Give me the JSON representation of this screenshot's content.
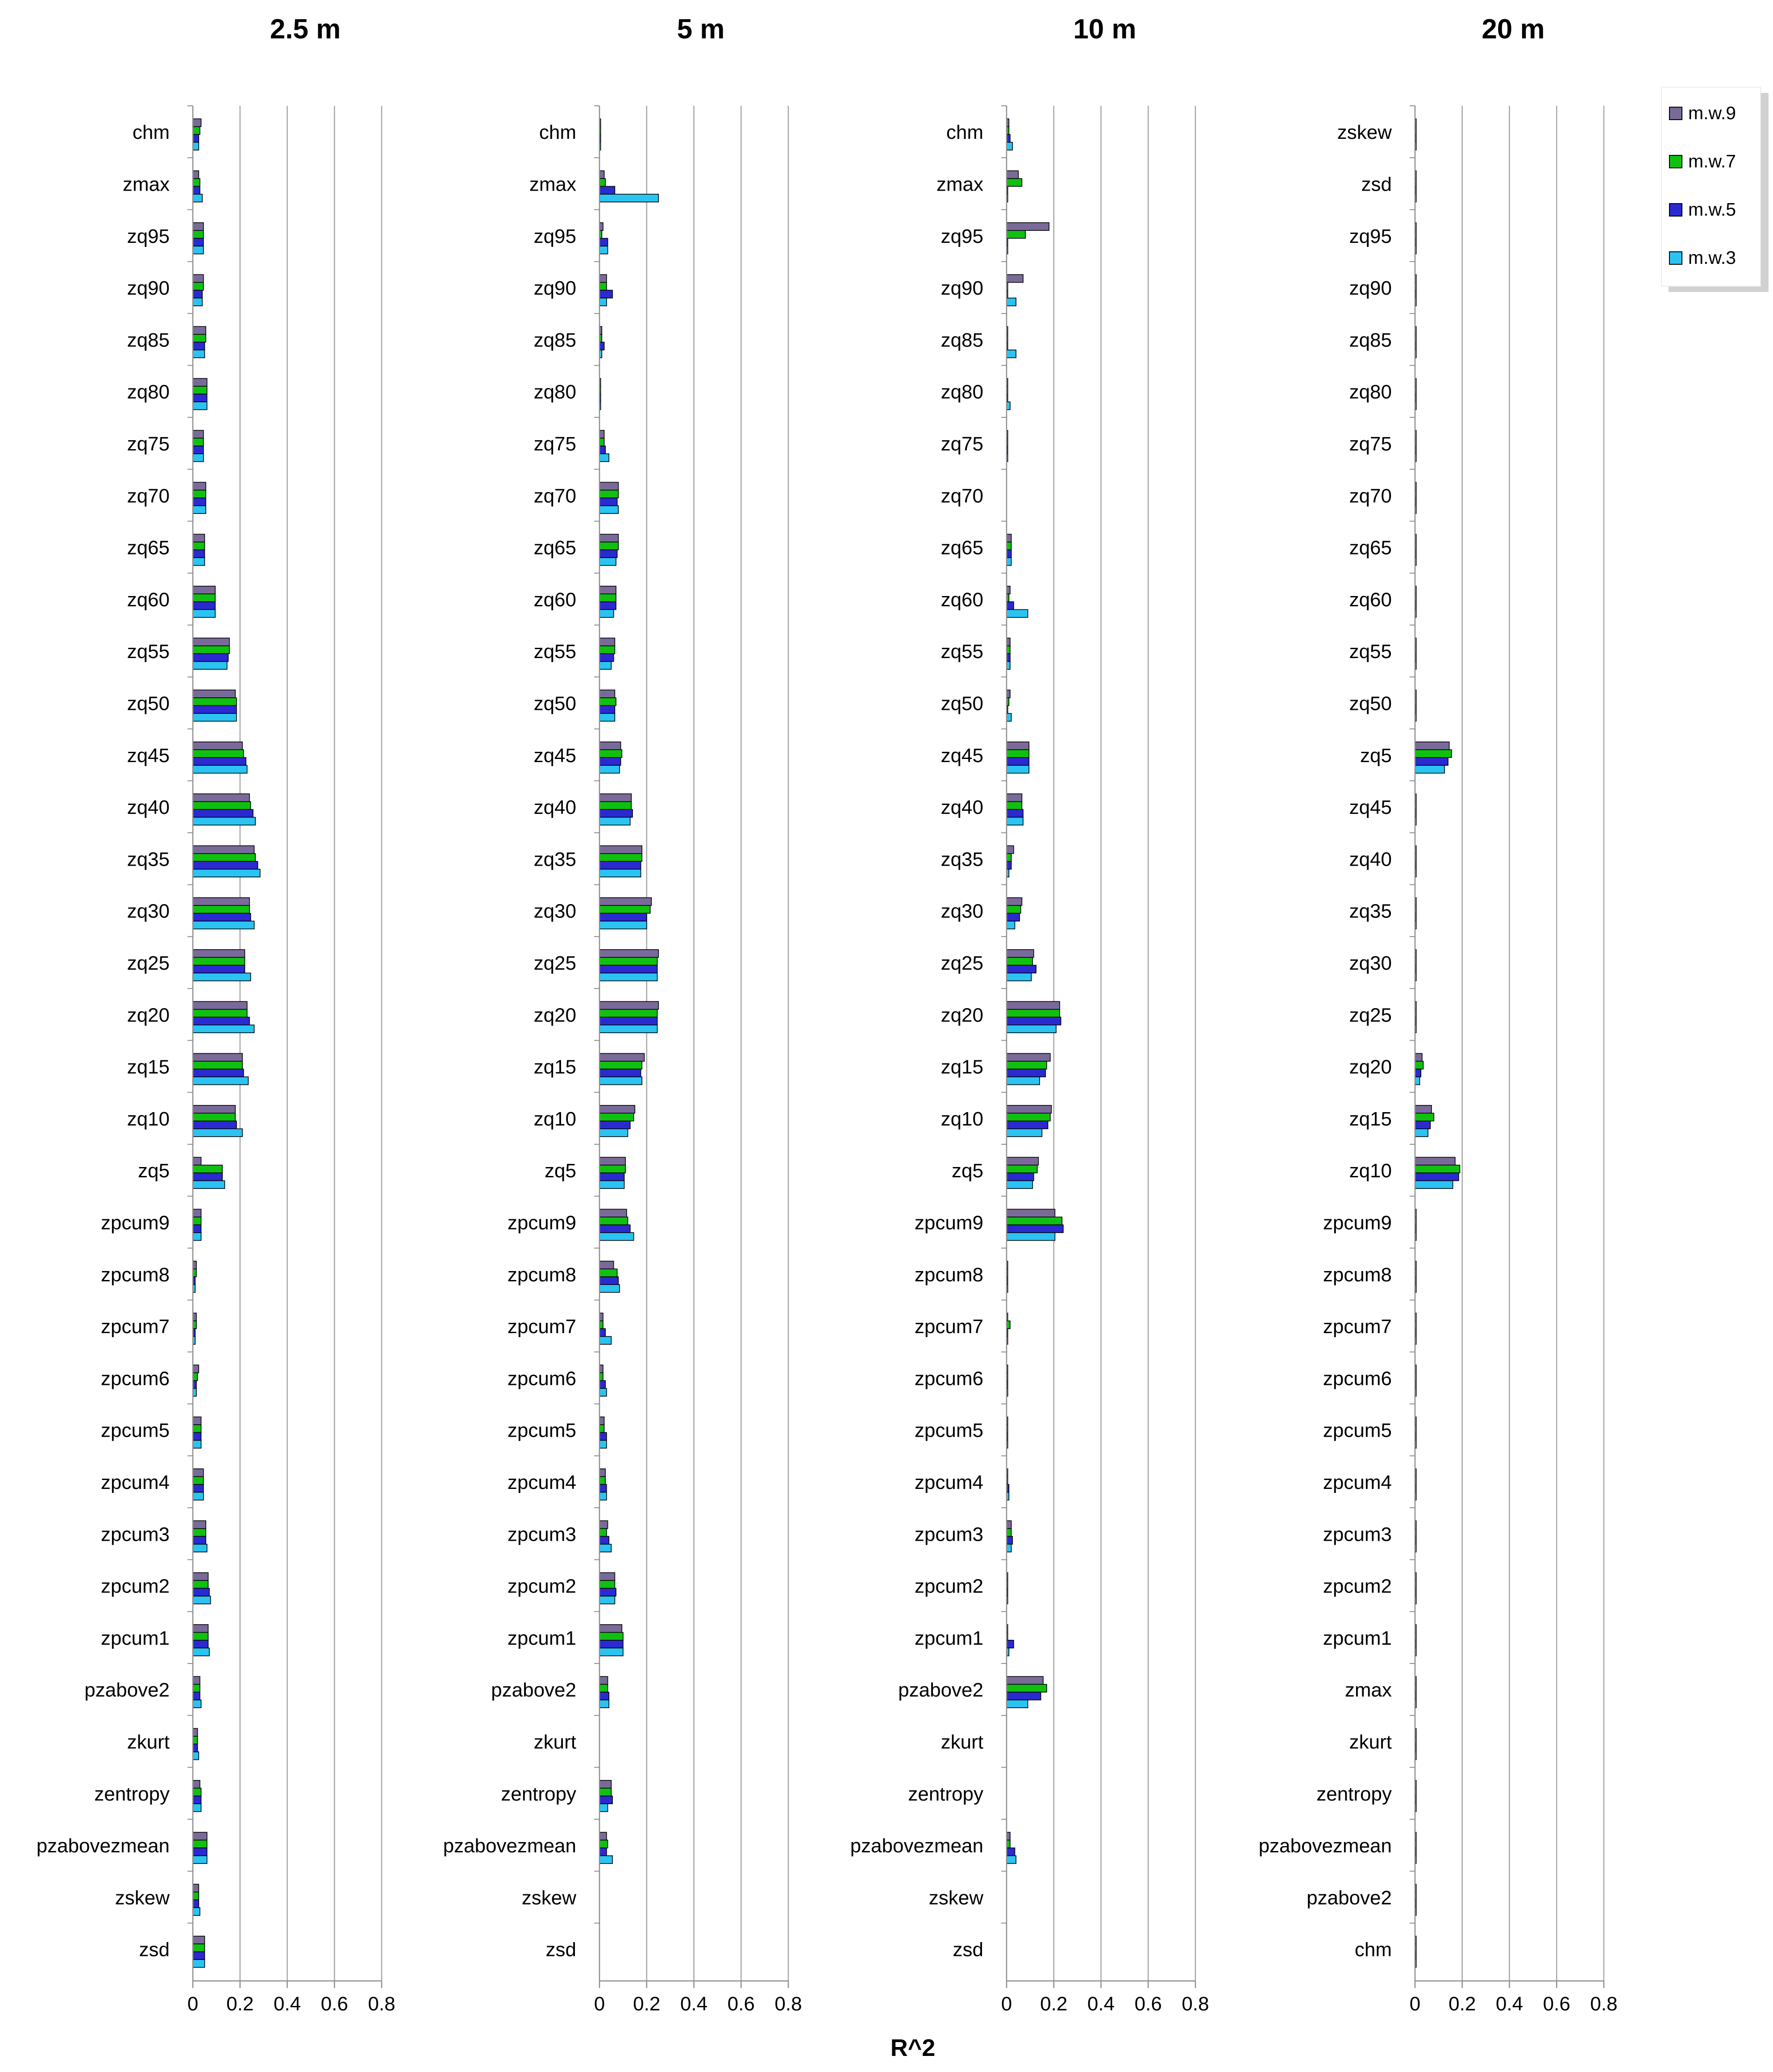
{
  "colors": {
    "m.w.9": "#7a6a99",
    "m.w.7": "#10c010",
    "m.w.5": "#2a2ad0",
    "m.w.3": "#2bc3f2"
  },
  "legend": [
    "m.w.9",
    "m.w.7",
    "m.w.5",
    "m.w.3"
  ],
  "xlabel": "R^2",
  "chart_data": [
    {
      "type": "bar",
      "orientation": "horizontal",
      "title": "2.5 m",
      "xlim": [
        0,
        0.8
      ],
      "ticks": [
        "0",
        "0.2",
        "0.4",
        "0.6",
        "0.8"
      ],
      "grid": true,
      "categories": [
        "chm",
        "zmax",
        "zq95",
        "zq90",
        "zq85",
        "zq80",
        "zq75",
        "zq70",
        "zq65",
        "zq60",
        "zq55",
        "zq50",
        "zq45",
        "zq40",
        "zq35",
        "zq30",
        "zq25",
        "zq20",
        "zq15",
        "zq10",
        "zq5",
        "zpcum9",
        "zpcum8",
        "zpcum7",
        "zpcum6",
        "zpcum5",
        "zpcum4",
        "zpcum3",
        "zpcum2",
        "zpcum1",
        "pzabove2",
        "zkurt",
        "zentropy",
        "pzabovezmean",
        "zskew",
        "zsd"
      ],
      "series": [
        {
          "name": "m.w.9",
          "values": [
            0.035,
            0.025,
            0.045,
            0.045,
            0.055,
            0.06,
            0.045,
            0.055,
            0.05,
            0.095,
            0.155,
            0.18,
            0.21,
            0.24,
            0.26,
            0.24,
            0.22,
            0.23,
            0.21,
            0.18,
            0.035,
            0.035,
            0.015,
            0.015,
            0.025,
            0.035,
            0.045,
            0.055,
            0.065,
            0.065,
            0.03,
            0.02,
            0.03,
            0.06,
            0.025,
            0.05
          ]
        },
        {
          "name": "m.w.7",
          "values": [
            0.03,
            0.03,
            0.045,
            0.045,
            0.055,
            0.06,
            0.045,
            0.055,
            0.05,
            0.095,
            0.155,
            0.185,
            0.215,
            0.245,
            0.265,
            0.24,
            0.22,
            0.23,
            0.21,
            0.18,
            0.125,
            0.035,
            0.015,
            0.015,
            0.02,
            0.035,
            0.045,
            0.055,
            0.065,
            0.065,
            0.03,
            0.02,
            0.035,
            0.06,
            0.025,
            0.05
          ]
        },
        {
          "name": "m.w.5",
          "values": [
            0.025,
            0.03,
            0.045,
            0.04,
            0.05,
            0.06,
            0.045,
            0.055,
            0.05,
            0.095,
            0.15,
            0.185,
            0.225,
            0.255,
            0.275,
            0.245,
            0.22,
            0.24,
            0.215,
            0.185,
            0.125,
            0.035,
            0.01,
            0.01,
            0.015,
            0.035,
            0.045,
            0.055,
            0.07,
            0.065,
            0.03,
            0.02,
            0.035,
            0.06,
            0.025,
            0.05
          ]
        },
        {
          "name": "m.w.3",
          "values": [
            0.025,
            0.04,
            0.045,
            0.04,
            0.05,
            0.06,
            0.045,
            0.055,
            0.05,
            0.095,
            0.145,
            0.185,
            0.23,
            0.265,
            0.285,
            0.26,
            0.245,
            0.26,
            0.235,
            0.21,
            0.135,
            0.035,
            0.01,
            0.01,
            0.015,
            0.035,
            0.045,
            0.06,
            0.075,
            0.07,
            0.035,
            0.025,
            0.035,
            0.06,
            0.03,
            0.05
          ]
        }
      ]
    },
    {
      "type": "bar",
      "orientation": "horizontal",
      "title": "5 m",
      "xlim": [
        0,
        0.8
      ],
      "ticks": [
        "0",
        "0.2",
        "0.4",
        "0.6",
        "0.8"
      ],
      "grid": true,
      "categories": [
        "chm",
        "zmax",
        "zq95",
        "zq90",
        "zq85",
        "zq80",
        "zq75",
        "zq70",
        "zq65",
        "zq60",
        "zq55",
        "zq50",
        "zq45",
        "zq40",
        "zq35",
        "zq30",
        "zq25",
        "zq20",
        "zq15",
        "zq10",
        "zq5",
        "zpcum9",
        "zpcum8",
        "zpcum7",
        "zpcum6",
        "zpcum5",
        "zpcum4",
        "zpcum3",
        "zpcum2",
        "zpcum1",
        "pzabove2",
        "zkurt",
        "zentropy",
        "pzabovezmean",
        "zskew",
        "zsd"
      ],
      "series": [
        {
          "name": "m.w.9",
          "values": [
            0.005,
            0.02,
            0.015,
            0.03,
            0.01,
            0.005,
            0.02,
            0.08,
            0.08,
            0.07,
            0.065,
            0.065,
            0.09,
            0.135,
            0.18,
            0.22,
            0.25,
            0.25,
            0.19,
            0.15,
            0.11,
            0.115,
            0.06,
            0.015,
            0.015,
            0.02,
            0.025,
            0.035,
            0.065,
            0.095,
            0.035,
            0,
            0.05,
            0.03,
            0,
            0
          ]
        },
        {
          "name": "m.w.7",
          "values": [
            0.005,
            0.025,
            0.01,
            0.03,
            0.01,
            0.005,
            0.02,
            0.08,
            0.08,
            0.07,
            0.065,
            0.07,
            0.095,
            0.135,
            0.18,
            0.215,
            0.245,
            0.245,
            0.18,
            0.145,
            0.11,
            0.12,
            0.075,
            0.015,
            0.015,
            0.02,
            0.025,
            0.03,
            0.065,
            0.1,
            0.035,
            0,
            0.05,
            0.035,
            0,
            0
          ]
        },
        {
          "name": "m.w.5",
          "values": [
            0.005,
            0.065,
            0.035,
            0.055,
            0.02,
            0.005,
            0.025,
            0.075,
            0.075,
            0.07,
            0.06,
            0.065,
            0.09,
            0.14,
            0.175,
            0.2,
            0.245,
            0.245,
            0.175,
            0.13,
            0.105,
            0.13,
            0.08,
            0.025,
            0.025,
            0.03,
            0.03,
            0.04,
            0.07,
            0.1,
            0.04,
            0,
            0.055,
            0.03,
            0,
            0
          ]
        },
        {
          "name": "m.w.3",
          "values": [
            0.005,
            0.25,
            0.035,
            0.03,
            0.01,
            0.005,
            0.04,
            0.08,
            0.07,
            0.06,
            0.05,
            0.065,
            0.085,
            0.13,
            0.175,
            0.2,
            0.245,
            0.245,
            0.18,
            0.12,
            0.105,
            0.145,
            0.085,
            0.05,
            0.03,
            0.03,
            0.03,
            0.05,
            0.065,
            0.1,
            0.04,
            0,
            0.035,
            0.055,
            0,
            0
          ]
        }
      ]
    },
    {
      "type": "bar",
      "orientation": "horizontal",
      "title": "10 m",
      "xlim": [
        0,
        0.8
      ],
      "ticks": [
        "0",
        "0.2",
        "0.4",
        "0.6",
        "0.8"
      ],
      "grid": true,
      "categories": [
        "chm",
        "zmax",
        "zq95",
        "zq90",
        "zq85",
        "zq80",
        "zq75",
        "zq70",
        "zq65",
        "zq60",
        "zq55",
        "zq50",
        "zq45",
        "zq40",
        "zq35",
        "zq30",
        "zq25",
        "zq20",
        "zq15",
        "zq10",
        "zq5",
        "zpcum9",
        "zpcum8",
        "zpcum7",
        "zpcum6",
        "zpcum5",
        "zpcum4",
        "zpcum3",
        "zpcum2",
        "zpcum1",
        "pzabove2",
        "zkurt",
        "zentropy",
        "pzabovezmean",
        "zskew",
        "zsd"
      ],
      "series": [
        {
          "name": "m.w.9",
          "values": [
            0.01,
            0.05,
            0.18,
            0.07,
            0.005,
            0.005,
            0.005,
            0,
            0.02,
            0.015,
            0.015,
            0.015,
            0.095,
            0.065,
            0.03,
            0.065,
            0.115,
            0.225,
            0.185,
            0.19,
            0.135,
            0.205,
            0.005,
            0.005,
            0.005,
            0.005,
            0.005,
            0.02,
            0.005,
            0.005,
            0.155,
            0,
            0,
            0.015,
            0,
            0
          ]
        },
        {
          "name": "m.w.7",
          "values": [
            0.01,
            0.065,
            0.08,
            0.005,
            0.005,
            0.005,
            0.005,
            0,
            0.02,
            0.01,
            0.015,
            0.01,
            0.095,
            0.065,
            0.02,
            0.06,
            0.11,
            0.225,
            0.17,
            0.185,
            0.13,
            0.235,
            0.005,
            0.015,
            0.005,
            0.005,
            0.005,
            0.02,
            0.005,
            0.005,
            0.17,
            0,
            0,
            0.015,
            0,
            0
          ]
        },
        {
          "name": "m.w.5",
          "values": [
            0.015,
            0.005,
            0.005,
            0.005,
            0.005,
            0.005,
            0.005,
            0,
            0.02,
            0.03,
            0.015,
            0.005,
            0.095,
            0.07,
            0.02,
            0.055,
            0.125,
            0.23,
            0.165,
            0.175,
            0.115,
            0.24,
            0.005,
            0.005,
            0.005,
            0.005,
            0.01,
            0.025,
            0.005,
            0.03,
            0.145,
            0,
            0,
            0.035,
            0,
            0
          ]
        },
        {
          "name": "m.w.3",
          "values": [
            0.025,
            0.005,
            0.005,
            0.04,
            0.04,
            0.015,
            0.005,
            0,
            0.02,
            0.09,
            0.015,
            0.02,
            0.095,
            0.07,
            0.01,
            0.035,
            0.105,
            0.21,
            0.14,
            0.15,
            0.11,
            0.205,
            0.005,
            0.005,
            0.005,
            0.005,
            0.01,
            0.02,
            0.005,
            0.01,
            0.09,
            0,
            0,
            0.04,
            0,
            0
          ]
        }
      ]
    },
    {
      "type": "bar",
      "orientation": "horizontal",
      "title": "20 m",
      "xlim": [
        0,
        0.8
      ],
      "ticks": [
        "0",
        "0.2",
        "0.4",
        "0.6",
        "0.8"
      ],
      "grid": true,
      "categories": [
        "zskew",
        "zsd",
        "zq95",
        "zq90",
        "zq85",
        "zq80",
        "zq75",
        "zq70",
        "zq65",
        "zq60",
        "zq55",
        "zq50",
        "zq5",
        "zq45",
        "zq40",
        "zq35",
        "zq30",
        "zq25",
        "zq20",
        "zq15",
        "zq10",
        "zpcum9",
        "zpcum8",
        "zpcum7",
        "zpcum6",
        "zpcum5",
        "zpcum4",
        "zpcum3",
        "zpcum2",
        "zpcum1",
        "zmax",
        "zkurt",
        "zentropy",
        "pzabovezmean",
        "pzabove2",
        "chm"
      ],
      "series": [
        {
          "name": "m.w.9",
          "values": [
            0.005,
            0.005,
            0.005,
            0.005,
            0.005,
            0.005,
            0.005,
            0.005,
            0.005,
            0.005,
            0.005,
            0.005,
            0.145,
            0.005,
            0.005,
            0.005,
            0.005,
            0.005,
            0.03,
            0.07,
            0.17,
            0.005,
            0.005,
            0.005,
            0.005,
            0.005,
            0.005,
            0.005,
            0.005,
            0.005,
            0.005,
            0.005,
            0.005,
            0.005,
            0.005,
            0.005
          ]
        },
        {
          "name": "m.w.7",
          "values": [
            0.005,
            0.005,
            0.005,
            0.005,
            0.005,
            0.005,
            0.005,
            0.005,
            0.005,
            0.005,
            0.005,
            0.005,
            0.155,
            0.005,
            0.005,
            0.005,
            0.005,
            0.005,
            0.035,
            0.08,
            0.19,
            0.005,
            0.005,
            0.005,
            0.005,
            0.005,
            0.005,
            0.005,
            0.005,
            0.005,
            0.005,
            0.005,
            0.005,
            0.005,
            0.005,
            0.005
          ]
        },
        {
          "name": "m.w.5",
          "values": [
            0.005,
            0.005,
            0.005,
            0.005,
            0.005,
            0.005,
            0.005,
            0.005,
            0.005,
            0.005,
            0.005,
            0.005,
            0.14,
            0.005,
            0.005,
            0.005,
            0.005,
            0.005,
            0.025,
            0.065,
            0.185,
            0.005,
            0.005,
            0.005,
            0.005,
            0.005,
            0.005,
            0.005,
            0.005,
            0.005,
            0.005,
            0.005,
            0.005,
            0.005,
            0.005,
            0.005
          ]
        },
        {
          "name": "m.w.3",
          "values": [
            0.005,
            0.005,
            0.005,
            0.005,
            0.005,
            0.005,
            0.005,
            0.005,
            0.005,
            0.005,
            0.005,
            0.005,
            0.125,
            0.005,
            0.005,
            0.005,
            0.005,
            0.005,
            0.02,
            0.055,
            0.16,
            0.005,
            0.005,
            0.005,
            0.005,
            0.005,
            0.005,
            0.005,
            0.005,
            0.005,
            0.005,
            0.005,
            0.005,
            0.005,
            0.005,
            0.005
          ]
        }
      ]
    }
  ]
}
